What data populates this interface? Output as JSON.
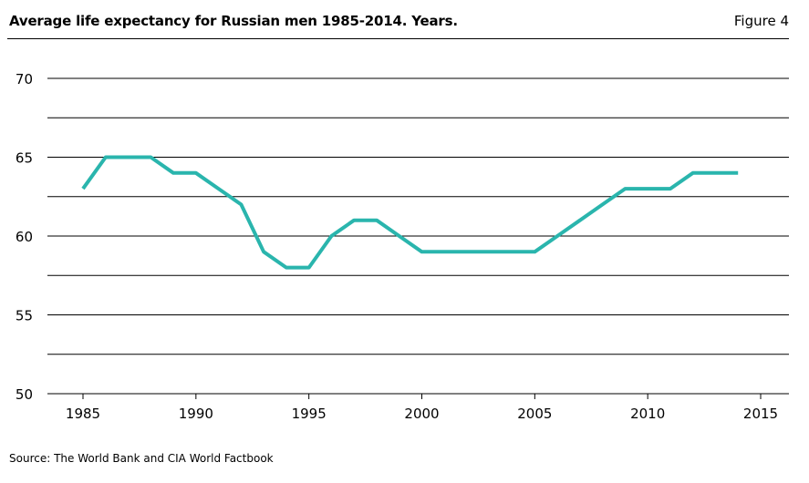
{
  "header": {
    "title": "Average life expectancy for Russian men 1985-2014. Years.",
    "figure_label": "Figure 4"
  },
  "source": "Source: The World Bank and CIA World Factbook",
  "colors": {
    "line": "#2ab5ad",
    "grid": "#000000",
    "axis": "#000000"
  },
  "chart_data": {
    "type": "line",
    "title": "Average life expectancy for Russian men 1985-2014. Years.",
    "xlabel": "",
    "ylabel": "",
    "xlim": [
      1985,
      2015
    ],
    "ylim": [
      50,
      70
    ],
    "xticks": [
      1985,
      1990,
      1995,
      2000,
      2005,
      2010,
      2015
    ],
    "yticks": [
      50,
      55,
      60,
      65,
      70
    ],
    "grid": "horizontal",
    "series": [
      {
        "x": [
          1985,
          1986,
          1987,
          1988,
          1989,
          1990,
          1991,
          1992,
          1993,
          1994,
          1995,
          1996,
          1997,
          1998,
          1999,
          2000,
          2001,
          2002,
          2003,
          2004,
          2005,
          2006,
          2007,
          2008,
          2009,
          2010,
          2011,
          2012,
          2013,
          2014
        ],
        "values": [
          63,
          65,
          65,
          65,
          64,
          64,
          63,
          62,
          59,
          58,
          58,
          60,
          61,
          61,
          60,
          59,
          59,
          59,
          59,
          59,
          59,
          60,
          61,
          62,
          63,
          63,
          63,
          64,
          64,
          64
        ]
      }
    ]
  }
}
